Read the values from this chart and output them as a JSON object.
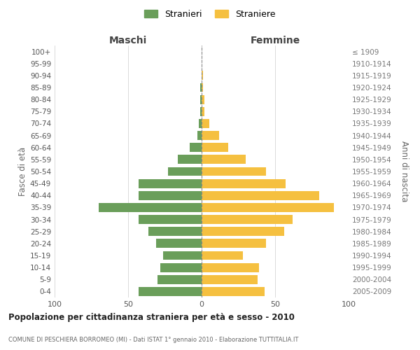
{
  "age_groups": [
    "100+",
    "95-99",
    "90-94",
    "85-89",
    "80-84",
    "75-79",
    "70-74",
    "65-69",
    "60-64",
    "55-59",
    "50-54",
    "45-49",
    "40-44",
    "35-39",
    "30-34",
    "25-29",
    "20-24",
    "15-19",
    "10-14",
    "5-9",
    "0-4"
  ],
  "birth_years": [
    "≤ 1909",
    "1910-1914",
    "1915-1919",
    "1920-1924",
    "1925-1929",
    "1930-1934",
    "1935-1939",
    "1940-1944",
    "1945-1949",
    "1950-1954",
    "1955-1959",
    "1960-1964",
    "1965-1969",
    "1970-1974",
    "1975-1979",
    "1980-1984",
    "1985-1989",
    "1990-1994",
    "1995-1999",
    "2000-2004",
    "2005-2009"
  ],
  "maschi": [
    0,
    0,
    0,
    1,
    1,
    1,
    2,
    3,
    8,
    16,
    23,
    43,
    43,
    70,
    43,
    36,
    31,
    26,
    28,
    30,
    43
  ],
  "femmine": [
    0,
    0,
    1,
    1,
    2,
    2,
    5,
    12,
    18,
    30,
    44,
    57,
    80,
    90,
    62,
    56,
    44,
    28,
    39,
    38,
    43
  ],
  "color_maschi": "#6a9e5a",
  "color_femmine": "#f5c040",
  "xlim": 100,
  "title": "Popolazione per cittadinanza straniera per età e sesso - 2010",
  "subtitle": "COMUNE DI PESCHIERA BORROMEO (MI) - Dati ISTAT 1° gennaio 2010 - Elaborazione TUTTITALIA.IT",
  "ylabel_left": "Fasce di età",
  "ylabel_right": "Anni di nascita",
  "header_maschi": "Maschi",
  "header_femmine": "Femmine",
  "legend_stranieri": "Stranieri",
  "legend_straniere": "Straniere",
  "background_color": "#ffffff",
  "grid_color": "#cccccc"
}
